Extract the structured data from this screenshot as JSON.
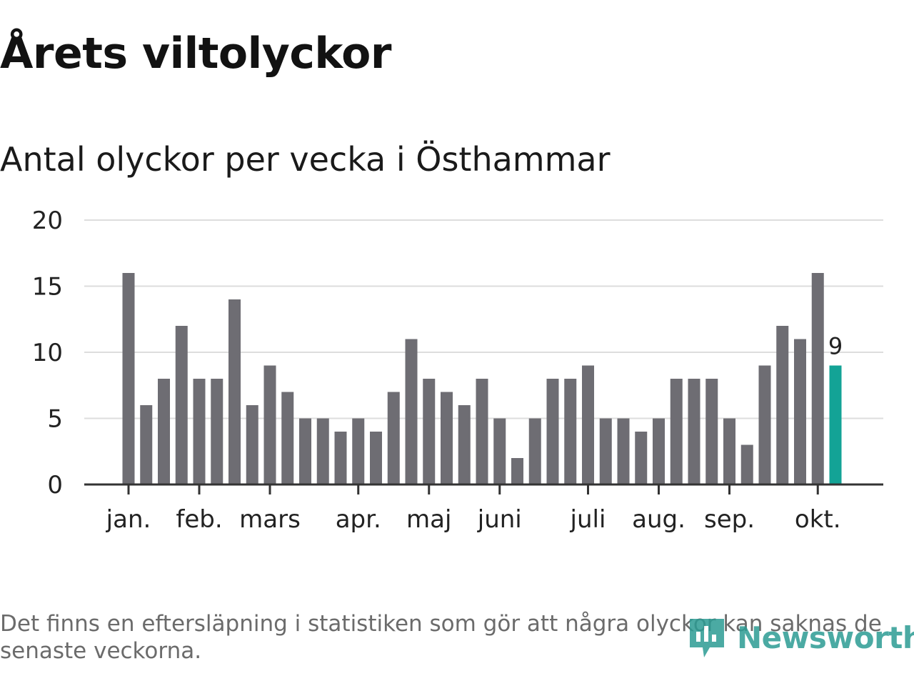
{
  "title": "Årets viltolyckor",
  "subtitle": "Antal olyckor per vecka i Östhammar",
  "footnote": "Det finns en eftersläpning i statistiken som gör att några olyckor kan saknas de senaste veckorna.",
  "brand": {
    "name": "Newsworthy",
    "icon": "newsworthy-logo-icon"
  },
  "colors": {
    "bar": "#6e6d73",
    "highlight": "#13a396",
    "grid": "#dddddd",
    "axis": "#333333",
    "text": "#222222"
  },
  "chart_data": {
    "type": "bar",
    "title": "Antal olyckor per vecka i Östhammar",
    "xlabel": "",
    "ylabel": "",
    "ylim": [
      0,
      20
    ],
    "yticks": [
      0,
      5,
      10,
      15,
      20
    ],
    "grid": true,
    "values": [
      16,
      6,
      8,
      12,
      8,
      8,
      14,
      6,
      9,
      7,
      5,
      5,
      4,
      5,
      4,
      7,
      11,
      8,
      7,
      6,
      8,
      5,
      2,
      5,
      8,
      8,
      9,
      5,
      5,
      4,
      5,
      8,
      8,
      8,
      5,
      3,
      9,
      12,
      11,
      16,
      9
    ],
    "month_labels": [
      {
        "label": "jan.",
        "bar_index": 0
      },
      {
        "label": "feb.",
        "bar_index": 4
      },
      {
        "label": "mars",
        "bar_index": 8
      },
      {
        "label": "apr.",
        "bar_index": 13
      },
      {
        "label": "maj",
        "bar_index": 17
      },
      {
        "label": "juni",
        "bar_index": 21
      },
      {
        "label": "juli",
        "bar_index": 26
      },
      {
        "label": "aug.",
        "bar_index": 30
      },
      {
        "label": "sep.",
        "bar_index": 34
      },
      {
        "label": "okt.",
        "bar_index": 39
      }
    ],
    "highlight": {
      "bar_index": 40,
      "label": "9"
    }
  }
}
